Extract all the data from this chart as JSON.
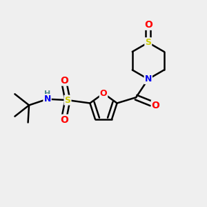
{
  "bg_color": "#efefef",
  "atom_colors": {
    "O": "#ff0000",
    "N": "#0000ee",
    "S": "#cccc00",
    "C": "#000000",
    "H": "#4a8888"
  },
  "bond_color": "#000000",
  "bond_width": 1.8,
  "dbo": 0.12,
  "figsize": [
    3.0,
    3.0
  ],
  "dpi": 100
}
